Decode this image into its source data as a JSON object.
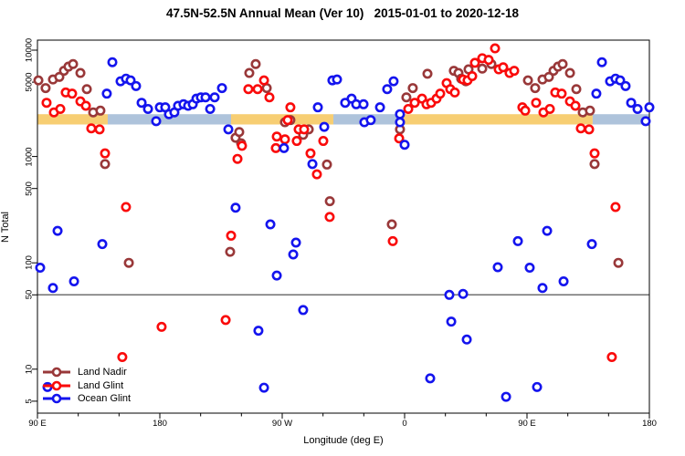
{
  "chart_data": {
    "type": "scatter",
    "title": "47.5N-52.5N Annual Mean (Ver 10)   2015-01-01 to 2020-12-18",
    "xlabel": "Longitude (deg E)",
    "ylabel": "N Total",
    "x_axis": {
      "units": "deg E (continuous, wraps past 180)",
      "range": [
        90,
        540
      ],
      "major_ticks": [
        {
          "lon": 90,
          "label": "90 E"
        },
        {
          "lon": 180,
          "label": "180"
        },
        {
          "lon": 270,
          "label": "90 W"
        },
        {
          "lon": 360,
          "label": "0"
        },
        {
          "lon": 450,
          "label": "90 E"
        },
        {
          "lon": 540,
          "label": "180"
        }
      ],
      "minor_tick_step_deg": 30,
      "duplicate_wrap_deg": 360
    },
    "y_axis": {
      "scale": "log",
      "range": [
        5,
        10000
      ],
      "ticks": [
        10000,
        5000,
        1000,
        500,
        100,
        50,
        10,
        5
      ]
    },
    "grid": "off",
    "legend_position": "bottom-left",
    "reference_line": {
      "value": 50,
      "color": "#707070"
    },
    "mean_band": {
      "value_range": [
        2000,
        2500
      ],
      "colors": {
        "land": "#F7CE73",
        "ocean": "#AEC3DB"
      },
      "segments": [
        {
          "surface": "land",
          "lon_range": [
            90,
            141.7
          ]
        },
        {
          "surface": "ocean",
          "lon_range": [
            141.7,
            232.4
          ]
        },
        {
          "surface": "land",
          "lon_range": [
            232.4,
            307.6
          ]
        },
        {
          "surface": "ocean",
          "lon_range": [
            307.6,
            355.3
          ]
        },
        {
          "surface": "land",
          "lon_range": [
            355.3,
            498.3
          ]
        },
        {
          "surface": "ocean",
          "lon_range": [
            498.3,
            540
          ]
        }
      ]
    },
    "series": [
      {
        "name": "Land Nadir",
        "color": "#993839",
        "points": [
          [
            90.7,
            5200
          ],
          [
            96,
            4400
          ],
          [
            101.4,
            5300
          ],
          [
            106.1,
            5600
          ],
          [
            109.5,
            6400
          ],
          [
            112.8,
            7000
          ],
          [
            116.2,
            7400
          ],
          [
            121.6,
            6100
          ],
          [
            126.3,
            4300
          ],
          [
            131,
            2600
          ],
          [
            136.3,
            2700
          ],
          [
            139.7,
            850
          ],
          [
            157.2,
            100
          ],
          [
            231.7,
            127
          ],
          [
            235.7,
            1500
          ],
          [
            238.4,
            1700
          ],
          [
            239.8,
            1330
          ],
          [
            245.8,
            6100
          ],
          [
            250.5,
            7400
          ],
          [
            258.6,
            4400
          ],
          [
            272,
            2100
          ],
          [
            276,
            2200
          ],
          [
            285.4,
            1600
          ],
          [
            289.5,
            1800
          ],
          [
            302.9,
            840
          ],
          [
            305,
            380
          ],
          [
            350.6,
            230
          ],
          [
            356.6,
            1800
          ],
          [
            361.3,
            3600
          ],
          [
            366,
            4400
          ],
          [
            376.8,
            6000
          ],
          [
            396.2,
            6400
          ],
          [
            399.6,
            6100
          ],
          [
            401.6,
            5400
          ],
          [
            405,
            5100
          ],
          [
            407,
            6600
          ],
          [
            417.1,
            6700
          ],
          [
            423.8,
            7400
          ]
        ]
      },
      {
        "name": "Land Glint",
        "color": "#FA0A0A",
        "points": [
          [
            96.7,
            3200
          ],
          [
            102.1,
            2600
          ],
          [
            106.8,
            2800
          ],
          [
            110.8,
            4000
          ],
          [
            115.5,
            3900
          ],
          [
            121.6,
            3300
          ],
          [
            125.6,
            3000
          ],
          [
            129.6,
            1840
          ],
          [
            135.7,
            1800
          ],
          [
            139.7,
            1070
          ],
          [
            152.4,
            13
          ],
          [
            155.1,
            335
          ],
          [
            181.3,
            25
          ],
          [
            228.4,
            29
          ],
          [
            232.4,
            180
          ],
          [
            237.1,
            950
          ],
          [
            240.4,
            1260
          ],
          [
            245.1,
            4300
          ],
          [
            251.9,
            4300
          ],
          [
            256.6,
            5200
          ],
          [
            260.6,
            3600
          ],
          [
            265.3,
            1200
          ],
          [
            266,
            1540
          ],
          [
            272,
            1450
          ],
          [
            274,
            2200
          ],
          [
            276,
            2900
          ],
          [
            280.7,
            1400
          ],
          [
            282.1,
            1800
          ],
          [
            286.1,
            1800
          ],
          [
            290.8,
            1070
          ],
          [
            295.5,
            680
          ],
          [
            300.2,
            1400
          ],
          [
            304.9,
            270
          ],
          [
            351.3,
            160
          ],
          [
            356,
            1480
          ],
          [
            362.7,
            2800
          ],
          [
            367.4,
            3200
          ],
          [
            372.8,
            3500
          ],
          [
            376.1,
            3100
          ],
          [
            379.5,
            3200
          ],
          [
            383.5,
            3500
          ],
          [
            386.2,
            3900
          ],
          [
            390.9,
            4900
          ],
          [
            393.6,
            4300
          ],
          [
            396.9,
            4000
          ],
          [
            403,
            5300
          ],
          [
            406.3,
            5200
          ],
          [
            409.7,
            5700
          ],
          [
            411.7,
            7600
          ],
          [
            417.1,
            8400
          ],
          [
            421.8,
            8100
          ],
          [
            426.5,
            10400
          ],
          [
            429.2,
            6600
          ],
          [
            432.5,
            6900
          ],
          [
            437.2,
            6100
          ],
          [
            440.6,
            6400
          ],
          [
            446.6,
            2900
          ],
          [
            448.7,
            2700
          ]
        ]
      },
      {
        "name": "Ocean Glint",
        "color": "#1414EE",
        "points": [
          [
            92,
            90
          ],
          [
            97.4,
            6.8
          ],
          [
            101.4,
            58
          ],
          [
            104.8,
            200
          ],
          [
            116.9,
            67
          ],
          [
            137.7,
            150
          ],
          [
            141,
            3900
          ],
          [
            145.1,
            7700
          ],
          [
            151.1,
            5100
          ],
          [
            155.1,
            5400
          ],
          [
            158.5,
            5200
          ],
          [
            162.5,
            4600
          ],
          [
            166.6,
            3200
          ],
          [
            171.3,
            2800
          ],
          [
            177.3,
            2150
          ],
          [
            180,
            2900
          ],
          [
            184,
            2900
          ],
          [
            186.7,
            2500
          ],
          [
            190.7,
            2600
          ],
          [
            193.4,
            3000
          ],
          [
            197.4,
            3100
          ],
          [
            200.8,
            3000
          ],
          [
            204.2,
            3100
          ],
          [
            206.9,
            3500
          ],
          [
            210.2,
            3600
          ],
          [
            213.6,
            3600
          ],
          [
            217,
            2800
          ],
          [
            220.3,
            3600
          ],
          [
            225.7,
            4400
          ],
          [
            230.4,
            1800
          ],
          [
            235.7,
            330
          ],
          [
            252.5,
            23
          ],
          [
            256.6,
            6.7
          ],
          [
            261.3,
            230
          ],
          [
            266,
            76
          ],
          [
            271.3,
            1200
          ],
          [
            278.1,
            120
          ],
          [
            280.1,
            155
          ],
          [
            285.4,
            36
          ],
          [
            292.2,
            850
          ],
          [
            296.2,
            2900
          ],
          [
            300.9,
            1900
          ],
          [
            306.9,
            5200
          ],
          [
            310.3,
            5300
          ],
          [
            316.3,
            3200
          ],
          [
            321,
            3500
          ],
          [
            324.4,
            3100
          ],
          [
            329.8,
            3100
          ],
          [
            330.4,
            2100
          ],
          [
            335.1,
            2200
          ],
          [
            341.9,
            2900
          ],
          [
            347.2,
            4300
          ],
          [
            351.9,
            5100
          ],
          [
            356.6,
            2500
          ],
          [
            356.6,
            2100
          ],
          [
            360,
            1290
          ],
          [
            378.8,
            8.2
          ],
          [
            392.9,
            50
          ],
          [
            394.3,
            28
          ],
          [
            403,
            51
          ],
          [
            405.7,
            19
          ],
          [
            428.5,
            91
          ],
          [
            434.6,
            5.5
          ],
          [
            443.3,
            160
          ]
        ]
      }
    ]
  }
}
